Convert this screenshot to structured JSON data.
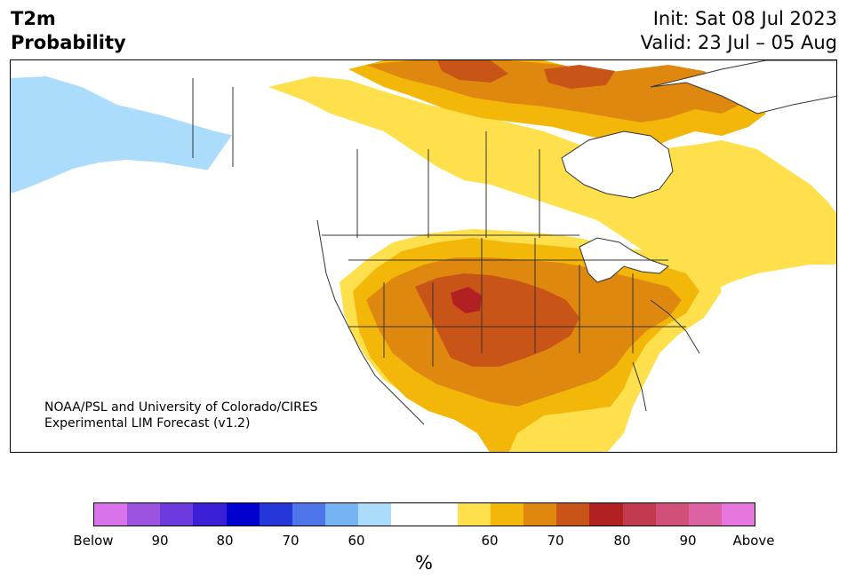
{
  "header": {
    "variable": "T2m",
    "product": "Probability",
    "init": "Init: Sat 08 Jul 2023",
    "valid": "Valid: 23 Jul – 05 Aug"
  },
  "map": {
    "region": "North America",
    "credit_line1": "NOAA/PSL and University of Colorado/CIRES",
    "credit_line2": "Experimental LIM Forecast (v1.2)"
  },
  "colorbar": {
    "units": "%",
    "colors": [
      "#d873e9",
      "#9b53e0",
      "#6d3ade",
      "#3a1fd7",
      "#0000cf",
      "#2537d9",
      "#4f75ea",
      "#76b3f2",
      "#abdcfb",
      "#ffffff",
      "#ffffff",
      "#fde04b",
      "#f3b70a",
      "#df880f",
      "#c85417",
      "#b12121",
      "#c23a4d",
      "#d05078",
      "#dc62a4",
      "#e777df"
    ],
    "tick_labels": [
      "Below",
      "90",
      "80",
      "70",
      "60",
      "60",
      "70",
      "80",
      "90",
      "Above"
    ]
  }
}
